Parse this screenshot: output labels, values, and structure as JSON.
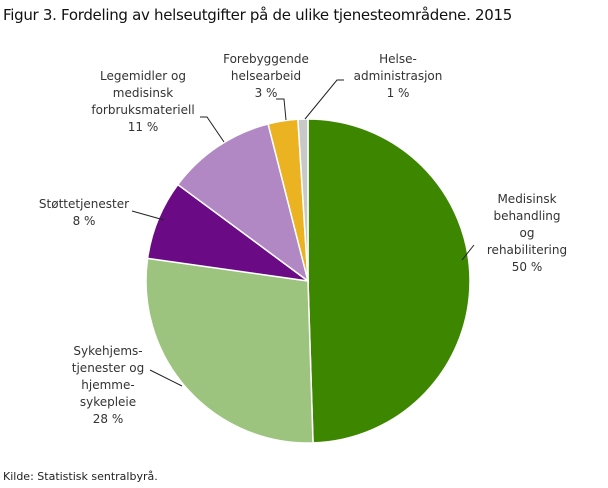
{
  "chart_data": {
    "type": "pie",
    "title": "Figur 3. Fordeling av helseutgifter på de ulike tjenesteområdene. 2015",
    "source": "Kilde: Statistisk sentralbyrå.",
    "start_angle": "top",
    "direction": "clockwise",
    "slices": [
      {
        "label": "Medisinsk\nbehandling  og\nrehabilitering",
        "value": 50,
        "value_label": "50 %",
        "color": "#3d8600"
      },
      {
        "label": "Sykehjems-\ntjenester  og\nhjemme-\nsykepleie",
        "value": 28,
        "value_label": "28 %",
        "color": "#9dc47f"
      },
      {
        "label": "Støttetjenester",
        "value": 8,
        "value_label": "8 %",
        "color": "#6a0a85"
      },
      {
        "label": "Legemidler  og\nmedisinsk\nforbruksmateriell",
        "value": 11,
        "value_label": "11 %",
        "color": "#b187c4"
      },
      {
        "label": "Forebyggende\nhelsearbeid",
        "value": 3,
        "value_label": "3 %",
        "color": "#ebb321"
      },
      {
        "label": "Helse-\nadministrasjon",
        "value": 1,
        "value_label": "1 %",
        "color": "#c8c8c8"
      }
    ]
  }
}
